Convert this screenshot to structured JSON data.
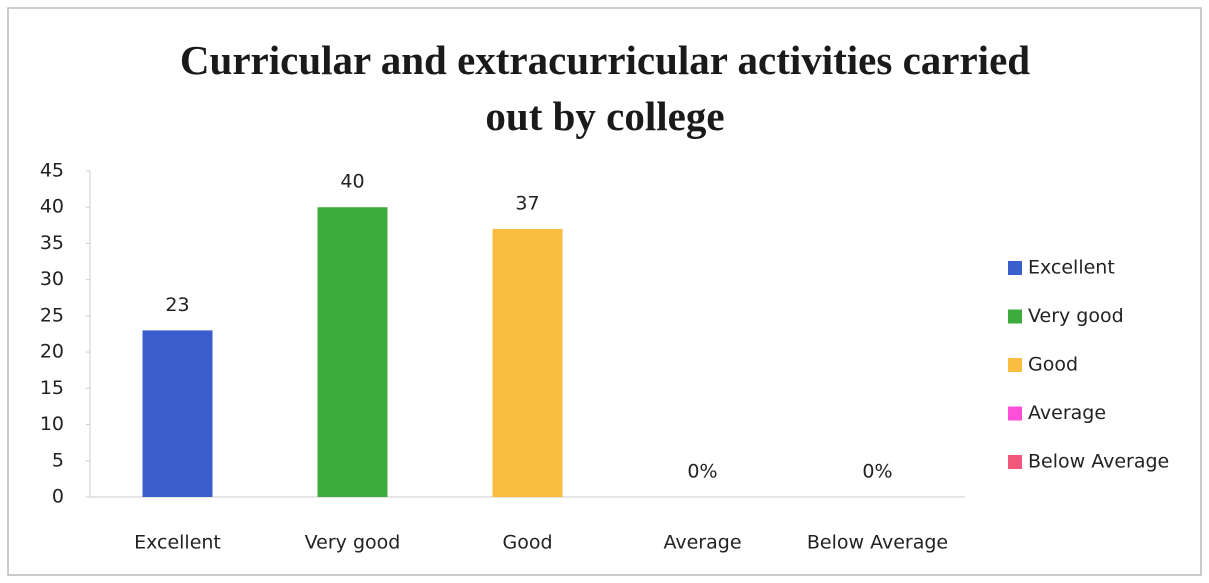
{
  "chart_data": {
    "type": "bar",
    "title": "Curricular and extracurricular activities carried out by college",
    "categories": [
      "Excellent",
      "Very good",
      "Good",
      "Average",
      "Below Average"
    ],
    "values": [
      23,
      40,
      37,
      0,
      0
    ],
    "value_labels": [
      "23",
      "40",
      "37",
      "0%",
      "0%"
    ],
    "colors": [
      "#3a5fcd",
      "#3cac3c",
      "#fbbd3f",
      "#ff4fd8",
      "#f0577a"
    ],
    "ylim": [
      0,
      45
    ],
    "yticks": [
      0,
      5,
      10,
      15,
      20,
      25,
      30,
      35,
      40,
      45
    ],
    "grid": false,
    "legend": "right"
  }
}
